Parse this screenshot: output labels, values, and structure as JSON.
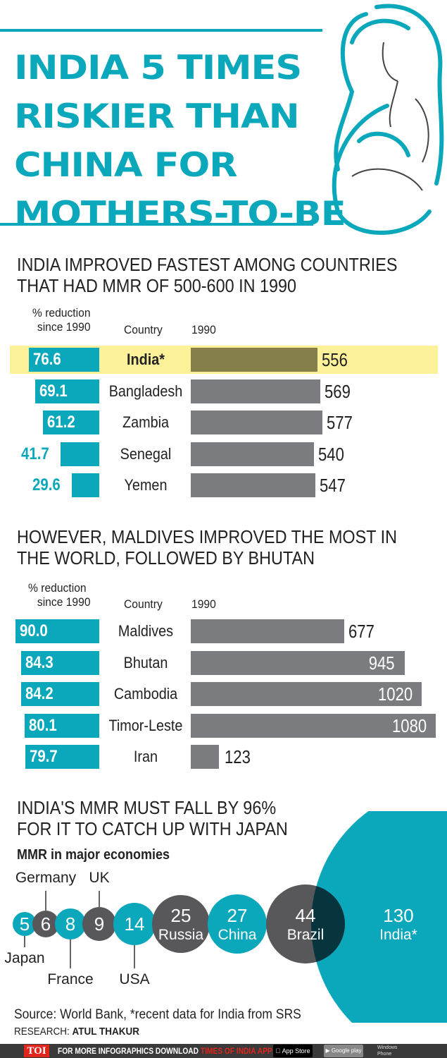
{
  "title": [
    "INDIA 5 TIMES",
    "RISKIER THAN",
    "CHINA FOR",
    "MOTHERS-TO-BE"
  ],
  "colors": {
    "teal": "#0ba8bc",
    "grey": "#7b7c7f",
    "india_bar": "#857f4c",
    "highlight": "#fdf29a",
    "dark_bubble": "#58585a",
    "overlap": "#063540"
  },
  "section1": {
    "heading": [
      "INDIA IMPROVED FASTEST AMONG COUNTRIES",
      "THAT HAD MMR OF 500-600 IN 1990"
    ],
    "col_reduction": [
      "% reduction",
      "since 1990"
    ],
    "col_country": "Country",
    "col_year": "1990",
    "rows": [
      {
        "country": "India*",
        "reduction": "76.6",
        "mmr_1990": "556",
        "highlight": true
      },
      {
        "country": "Bangladesh",
        "reduction": "69.1",
        "mmr_1990": "569"
      },
      {
        "country": "Zambia",
        "reduction": "61.2",
        "mmr_1990": "577"
      },
      {
        "country": "Senegal",
        "reduction": "41.7",
        "mmr_1990": "540"
      },
      {
        "country": "Yemen",
        "reduction": "29.6",
        "mmr_1990": "547"
      }
    ]
  },
  "section2": {
    "heading": [
      "HOWEVER, MALDIVES IMPROVED THE MOST IN",
      "THE WORLD, FOLLOWED BY BHUTAN"
    ],
    "col_reduction": [
      "% reduction",
      "since 1990"
    ],
    "col_country": "Country",
    "col_year": "1990",
    "rows": [
      {
        "country": "Maldives",
        "reduction": "90.0",
        "mmr_1990": "677"
      },
      {
        "country": "Bhutan",
        "reduction": "84.3",
        "mmr_1990": "945"
      },
      {
        "country": "Cambodia",
        "reduction": "84.2",
        "mmr_1990": "1020"
      },
      {
        "country": "Timor-Leste",
        "reduction": "80.1",
        "mmr_1990": "1080"
      },
      {
        "country": "Iran",
        "reduction": "79.7",
        "mmr_1990": "123"
      }
    ]
  },
  "section3": {
    "heading": [
      "INDIA'S MMR MUST FALL BY 96%",
      "FOR IT TO CATCH UP WITH JAPAN"
    ],
    "subheading": "MMR in major economies"
  },
  "chart_data": [
    {
      "type": "bar",
      "title": "INDIA IMPROVED FASTEST AMONG COUNTRIES THAT HAD MMR OF 500-600 IN 1990",
      "categories": [
        "India*",
        "Bangladesh",
        "Zambia",
        "Senegal",
        "Yemen"
      ],
      "series": [
        {
          "name": "% reduction since 1990",
          "values": [
            76.6,
            69.1,
            61.2,
            41.7,
            29.6
          ]
        },
        {
          "name": "1990",
          "values": [
            556,
            569,
            577,
            540,
            547
          ]
        }
      ]
    },
    {
      "type": "bar",
      "title": "HOWEVER, MALDIVES IMPROVED THE MOST IN THE WORLD, FOLLOWED BY BHUTAN",
      "categories": [
        "Maldives",
        "Bhutan",
        "Cambodia",
        "Timor-Leste",
        "Iran"
      ],
      "series": [
        {
          "name": "% reduction since 1990",
          "values": [
            90.0,
            84.3,
            84.2,
            80.1,
            79.7
          ]
        },
        {
          "name": "1990",
          "values": [
            677,
            945,
            1020,
            1080,
            123
          ]
        }
      ]
    },
    {
      "type": "bubble",
      "title": "MMR in major economies",
      "points": [
        {
          "country": "Japan",
          "value": 5,
          "color": "teal",
          "label": "below"
        },
        {
          "country": "Germany",
          "value": 6,
          "color": "dark",
          "label": "above"
        },
        {
          "country": "France",
          "value": 8,
          "color": "teal",
          "label": "below"
        },
        {
          "country": "UK",
          "value": 9,
          "color": "dark",
          "label": "above"
        },
        {
          "country": "USA",
          "value": 14,
          "color": "teal",
          "label": "below"
        },
        {
          "country": "Russia",
          "value": 25,
          "color": "dark",
          "label": "inside"
        },
        {
          "country": "China",
          "value": 27,
          "color": "teal",
          "label": "inside"
        },
        {
          "country": "Brazil",
          "value": 44,
          "color": "dark",
          "label": "inside"
        },
        {
          "country": "India*",
          "value": 130,
          "color": "teal",
          "label": "inside"
        }
      ]
    }
  ],
  "source": "Source: World Bank, *recent data for India from SRS",
  "research_label": "RESEARCH:",
  "research_name": "ATUL THAKUR",
  "footer": {
    "brand": "TOI",
    "text": "FOR MORE  INFOGRAPHICS DOWNLOAD",
    "app": "TIMES OF INDIA  APP",
    "appstore": "App Store",
    "googleplay": "Google play",
    "windows": "Windows Phone"
  }
}
